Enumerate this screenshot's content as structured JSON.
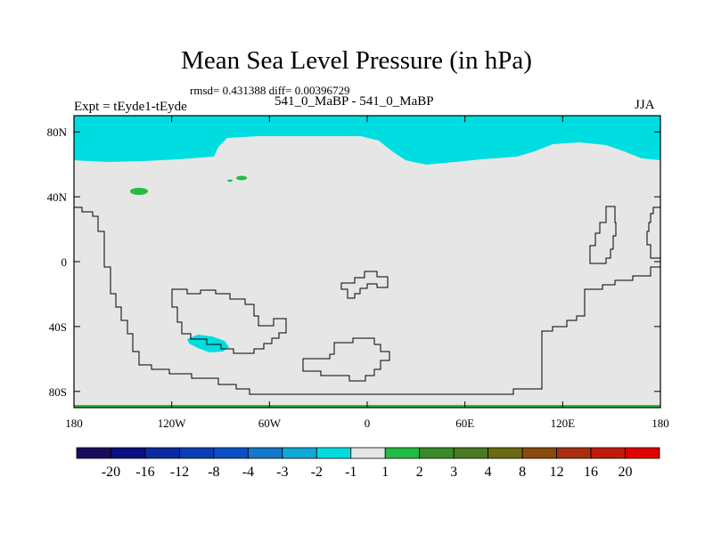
{
  "chart_data": {
    "type": "map",
    "title": "Mean Sea Level Pressure (in hPa)",
    "stats_line": "rmsd= 0.431388 diff= 0.00396729",
    "experiment": "Expt = tEyde1-tEyde",
    "subtitle": "541_0_MaBP - 541_0_MaBP",
    "season": "JJA",
    "x_tick_labels": [
      "180",
      "120W",
      "60W",
      "0",
      "60E",
      "120E",
      "180"
    ],
    "x_tick_values": [
      -180,
      -120,
      -60,
      0,
      60,
      120,
      180
    ],
    "y_tick_labels": [
      "80N",
      "40N",
      "0",
      "40S",
      "80S"
    ],
    "y_tick_values": [
      80,
      40,
      0,
      -40,
      -80
    ],
    "xlim": [
      -180,
      180
    ],
    "ylim": [
      -90,
      90
    ],
    "background_color": "#e6e6e6",
    "colorbar": {
      "labels": [
        "-20",
        "-16",
        "-12",
        "-8",
        "-4",
        "-3",
        "-2",
        "-1",
        "1",
        "2",
        "3",
        "4",
        "8",
        "12",
        "16",
        "20"
      ],
      "colors": [
        "#1a0a5e",
        "#0a1080",
        "#0a2ba0",
        "#0a3fb5",
        "#0a4fc5",
        "#1577c9",
        "#12a8d8",
        "#00dde0",
        "#e6e6e6",
        "#22bb44",
        "#3a8a2a",
        "#4a7a22",
        "#6a6a10",
        "#8a4a0a",
        "#a83010",
        "#c01a0a",
        "#e00000"
      ]
    },
    "regions": [
      {
        "name": "north-polar-anomaly",
        "value_range": [
          -2,
          -1
        ],
        "color": "#00dde0"
      },
      {
        "name": "southern-ocean-anomaly",
        "value_range": [
          -2,
          -1
        ],
        "color": "#00dde0"
      },
      {
        "name": "northern-positive-patches",
        "value_range": [
          1,
          2
        ],
        "color": "#22bb44"
      },
      {
        "name": "south-polar-positive-strip",
        "value_range": [
          1,
          2
        ],
        "color": "#22bb44"
      }
    ]
  }
}
